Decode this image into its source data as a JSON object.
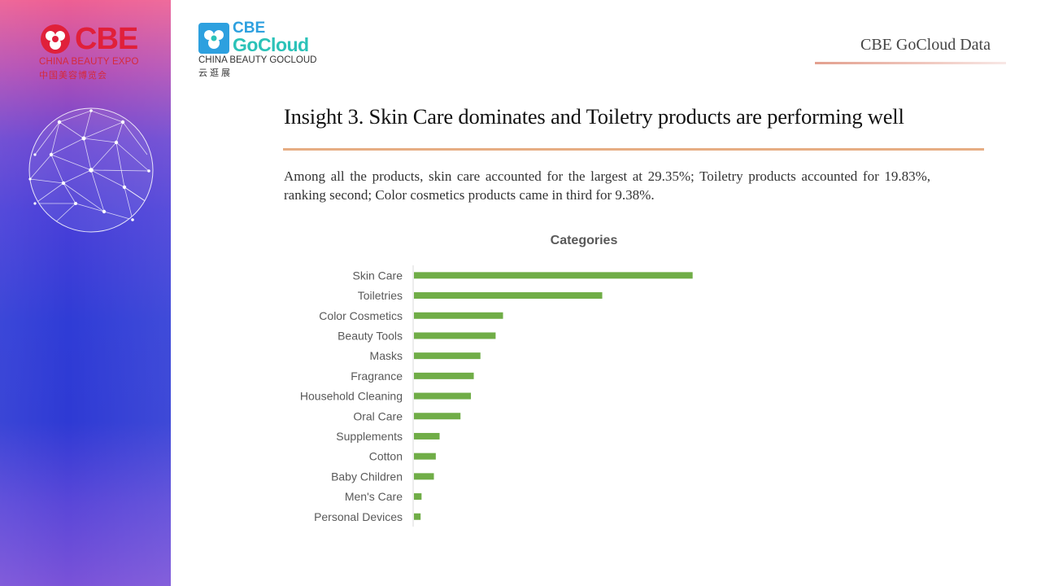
{
  "branding": {
    "cbe_wordmark": "CBE",
    "cbe_subtitle_en": "CHINA BEAUTY EXPO",
    "cbe_subtitle_cn": "中国美容博览会",
    "gocloud_line1": "CBE",
    "gocloud_line2": "GoCloud",
    "gocloud_subtitle_en": "CHINA BEAUTY GOCLOUD",
    "gocloud_subtitle_cn": "云逛展",
    "header_tag": "CBE GoCloud Data"
  },
  "slide": {
    "title": "Insight 3. Skin Care dominates and Toiletry products are performing well",
    "description": "Among all the products, skin care accounted for the largest at 29.35%; Toiletry products accounted for 19.83%, ranking second; Color cosmetics products came in third for 9.38%."
  },
  "colors": {
    "bar": "#70ad47",
    "cbe_red": "#e0203a",
    "gocloud_blue": "#2da0df",
    "gocloud_teal": "#2bc2b8",
    "accent_line": "#e6ad83"
  },
  "chart_data": {
    "type": "bar",
    "orientation": "horizontal",
    "title": "Categories",
    "categories": [
      "Skin Care",
      "Toiletries",
      "Color Cosmetics",
      "Beauty Tools",
      "Masks",
      "Fragrance",
      "Household Cleaning",
      "Oral Care",
      "Supplements",
      "Cotton",
      "Baby Children",
      "Men's Care",
      "Personal Devices"
    ],
    "values": [
      29.35,
      19.83,
      9.38,
      8.6,
      7.0,
      6.3,
      6.0,
      4.9,
      2.7,
      2.3,
      2.1,
      0.8,
      0.7
    ],
    "unit": "%",
    "xlim": [
      0,
      40
    ],
    "grid": false,
    "legend": "none"
  }
}
